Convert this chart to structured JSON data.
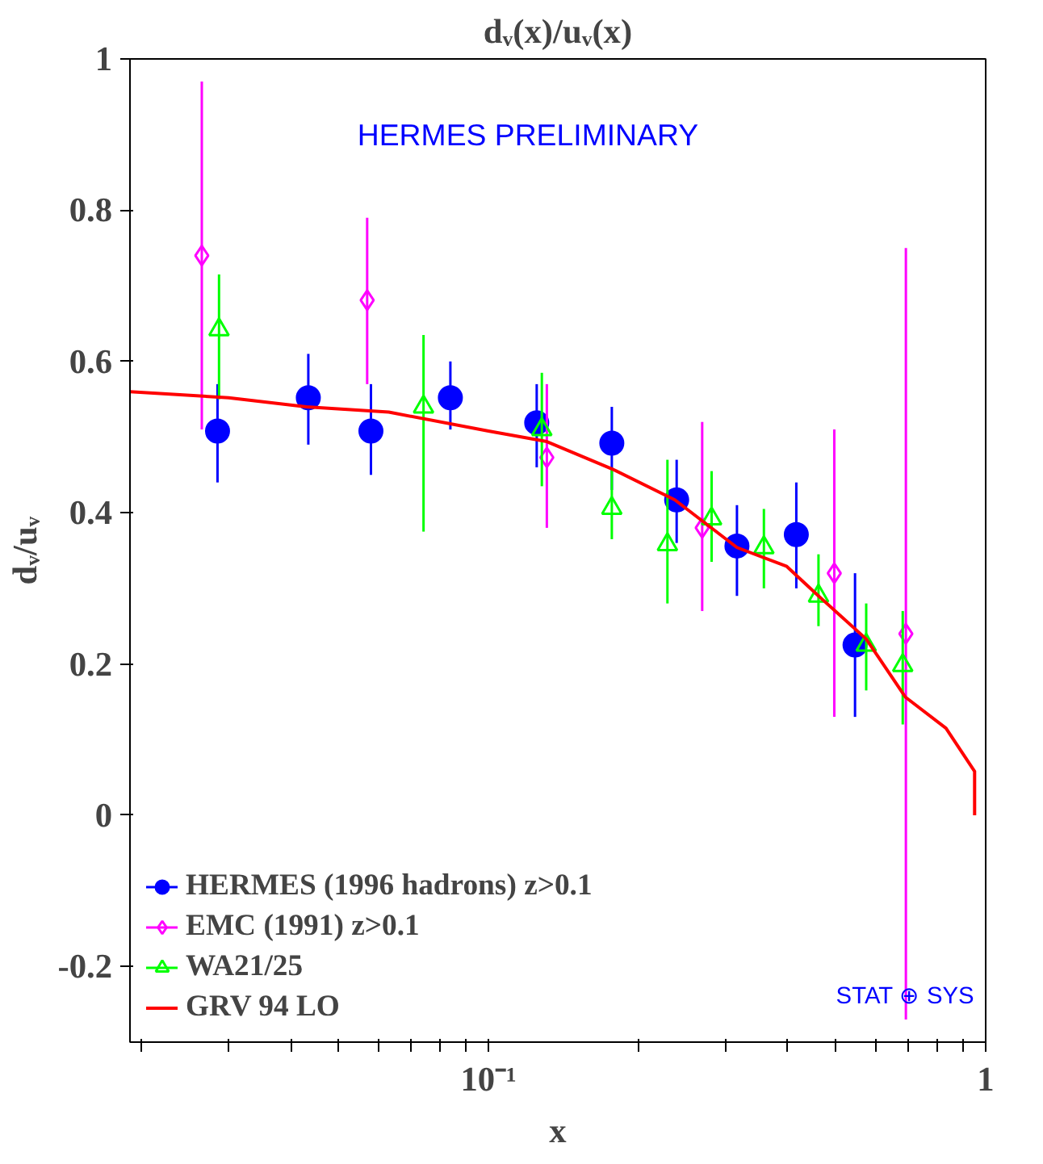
{
  "chart_data": {
    "type": "scatter",
    "title": "dᵥ(x)/uᵥ(x)",
    "ylabel": "dᵥ/uᵥ",
    "xlabel": "x",
    "log": "x",
    "xlim": [
      0.019,
      1
    ],
    "ylim": [
      -0.3,
      1
    ],
    "xticks": [
      {
        "value": 0.02,
        "label": null
      },
      {
        "value": 0.03,
        "label": null
      },
      {
        "value": 0.04,
        "label": null
      },
      {
        "value": 0.05,
        "label": null
      },
      {
        "value": 0.06,
        "label": null
      },
      {
        "value": 0.07,
        "label": null
      },
      {
        "value": 0.08,
        "label": null
      },
      {
        "value": 0.09,
        "label": null
      },
      {
        "value": 0.1,
        "label": "10⁻¹"
      },
      {
        "value": 0.2,
        "label": null
      },
      {
        "value": 0.3,
        "label": null
      },
      {
        "value": 0.4,
        "label": null
      },
      {
        "value": 0.5,
        "label": null
      },
      {
        "value": 0.6,
        "label": null
      },
      {
        "value": 0.7,
        "label": null
      },
      {
        "value": 0.8,
        "label": null
      },
      {
        "value": 0.9,
        "label": null
      },
      1
    ],
    "yticks": [
      -0.2,
      0,
      0.2,
      0.4,
      0.6,
      0.8,
      1
    ],
    "grid": false,
    "legend": "bottom left",
    "annotations": [
      "HERMES PRELIMINARY",
      "STAT ⊕ SYS"
    ],
    "series": [
      {
        "name": "HERMES (1996 hadrons) z>0.1",
        "color": "#0000ff",
        "marker": "circle",
        "x": [
          0.0285,
          0.0434,
          0.058,
          0.0838,
          0.125,
          0.177,
          0.239,
          0.316,
          0.416,
          0.546
        ],
        "values": [
          0.508,
          0.552,
          0.508,
          0.552,
          0.519,
          0.492,
          0.417,
          0.356,
          0.371,
          0.225
        ],
        "errors": [
          [
            0.44,
            0.57
          ],
          [
            0.49,
            0.61
          ],
          [
            0.45,
            0.57
          ],
          [
            0.51,
            0.6
          ],
          [
            0.46,
            0.57
          ],
          [
            0.43,
            0.54
          ],
          [
            0.36,
            0.47
          ],
          [
            0.29,
            0.41
          ],
          [
            0.3,
            0.44
          ],
          [
            0.13,
            0.32
          ]
        ]
      },
      {
        "name": "EMC (1991) z>0.1",
        "color": "#ff00ff",
        "marker": "diamond",
        "x": [
          0.0265,
          0.057,
          0.131,
          0.269,
          0.496,
          0.691
        ],
        "values": [
          0.74,
          0.681,
          0.473,
          0.38,
          0.32,
          0.24
        ],
        "errors": [
          [
            0.51,
            0.97
          ],
          [
            0.57,
            0.79
          ],
          [
            0.38,
            0.57
          ],
          [
            0.27,
            0.52
          ],
          [
            0.13,
            0.51
          ],
          [
            -0.27,
            0.75
          ]
        ]
      },
      {
        "name": "WA21/25",
        "color": "#00ff00",
        "marker": "triangle",
        "x": [
          0.0287,
          0.074,
          0.128,
          0.177,
          0.229,
          0.281,
          0.358,
          0.461,
          0.575,
          0.681
        ],
        "values": [
          0.642,
          0.54,
          0.51,
          0.406,
          0.358,
          0.392,
          0.354,
          0.29,
          0.225,
          0.198
        ],
        "errors": [
          [
            0.55,
            0.715
          ],
          [
            0.375,
            0.635
          ],
          [
            0.435,
            0.585
          ],
          [
            0.365,
            0.46
          ],
          [
            0.28,
            0.47
          ],
          [
            0.335,
            0.455
          ],
          [
            0.3,
            0.405
          ],
          [
            0.25,
            0.345
          ],
          [
            0.165,
            0.28
          ],
          [
            0.12,
            0.27
          ]
        ]
      },
      {
        "name": "GRV 94 LO",
        "type": "line",
        "color": "#ff0000",
        "marker": "none",
        "x": [
          0.019,
          0.03,
          0.043,
          0.063,
          0.1,
          0.131,
          0.177,
          0.237,
          0.316,
          0.398,
          0.461,
          0.575,
          0.69,
          0.832,
          0.95,
          0.95
        ],
        "values": [
          0.56,
          0.552,
          0.54,
          0.533,
          0.508,
          0.494,
          0.458,
          0.417,
          0.354,
          0.329,
          0.29,
          0.233,
          0.156,
          0.115,
          0.058,
          0
        ]
      }
    ]
  }
}
